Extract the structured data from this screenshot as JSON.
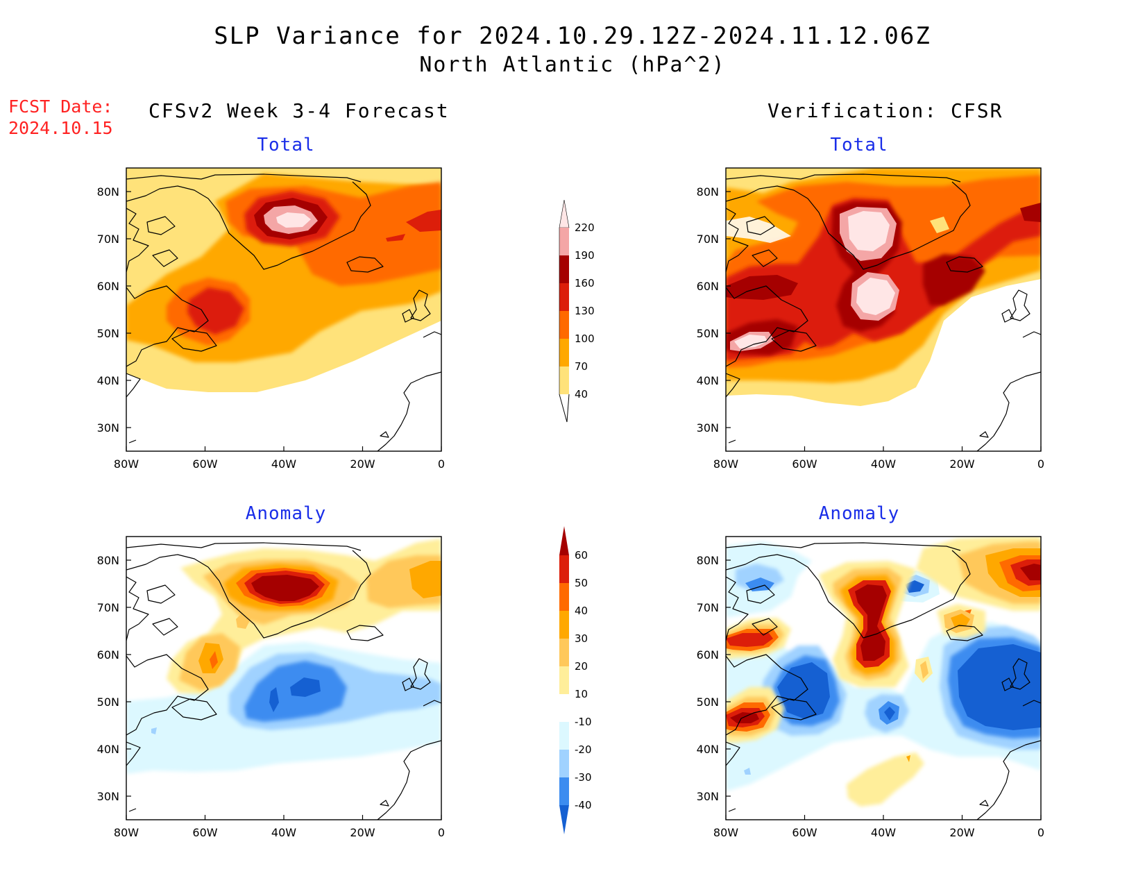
{
  "header": {
    "title_line1": "SLP Variance for 2024.10.29.12Z-2024.11.12.06Z",
    "title_line2": "North Atlantic (hPa^2)",
    "fcst_label": "FCST Date:",
    "fcst_date": "2024.10.15"
  },
  "columns": {
    "left": "CFSv2 Week 3-4 Forecast",
    "right": "Verification: CFSR"
  },
  "panels": [
    {
      "id": "forecast-total",
      "title": "Total"
    },
    {
      "id": "verification-total",
      "title": "Total"
    },
    {
      "id": "forecast-anomaly",
      "title": "Anomaly"
    },
    {
      "id": "verification-anomaly",
      "title": "Anomaly"
    }
  ],
  "axes": {
    "lon_labels": [
      "80W",
      "60W",
      "40W",
      "20W",
      "0"
    ],
    "lat_labels": [
      "80N",
      "70N",
      "60N",
      "50N",
      "40N",
      "30N"
    ],
    "lon_range": [
      -80,
      0
    ],
    "lat_range": [
      25,
      85
    ]
  },
  "colorbars": {
    "total": {
      "levels": [
        "220",
        "190",
        "160",
        "130",
        "100",
        "70",
        "40"
      ],
      "colors": [
        "#ffe6e6",
        "#f4a6a6",
        "#a50000",
        "#dc1e0a",
        "#ff6a00",
        "#ffa800",
        "#ffe27a"
      ]
    },
    "anomaly": {
      "levels": [
        "60",
        "50",
        "40",
        "30",
        "20",
        "10",
        "-10",
        "-20",
        "-30",
        "-40"
      ],
      "colors": [
        "#a50000",
        "#dc1e0a",
        "#ff6a00",
        "#ffa800",
        "#ffc85a",
        "#ffee9a",
        "#ffffff",
        "#dcf8ff",
        "#a0d2ff",
        "#3c8cf0",
        "#1560d2"
      ]
    }
  }
}
